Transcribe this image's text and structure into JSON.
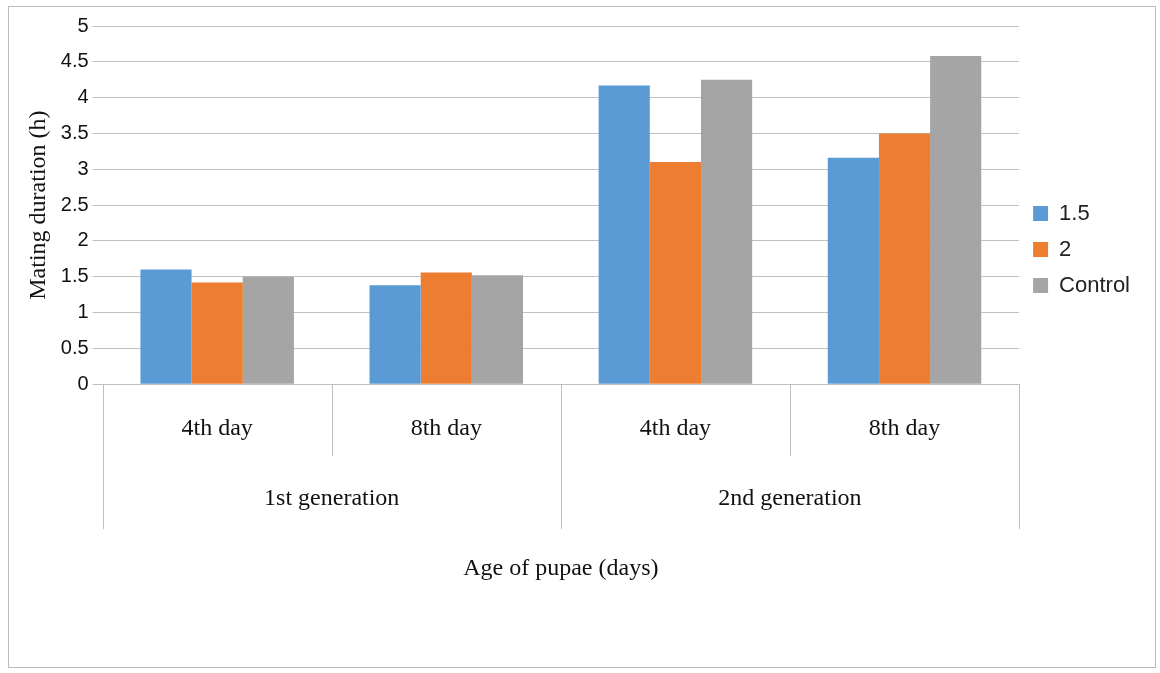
{
  "chart_data": {
    "type": "bar",
    "xlabel": "Age of pupae (days)",
    "ylabel": "Mating duration (h)",
    "categories": [
      "4th day",
      "8th day",
      "4th day",
      "8th day"
    ],
    "annotations": [
      "1st generation",
      "2nd generation"
    ],
    "series": [
      {
        "name": "1.5",
        "color": "#5b9bd5",
        "values": [
          1.6,
          1.38,
          4.17,
          3.16
        ]
      },
      {
        "name": "2",
        "color": "#ed7d31",
        "values": [
          1.42,
          1.56,
          3.1,
          3.5
        ]
      },
      {
        "name": "Control",
        "color": "#a5a5a5",
        "values": [
          1.5,
          1.52,
          4.25,
          4.58
        ]
      }
    ],
    "ylim": [
      0,
      5
    ],
    "yticks": [
      0,
      0.5,
      1,
      1.5,
      2,
      2.5,
      3,
      3.5,
      4,
      4.5,
      5
    ],
    "grid": "y",
    "legend": "right"
  }
}
